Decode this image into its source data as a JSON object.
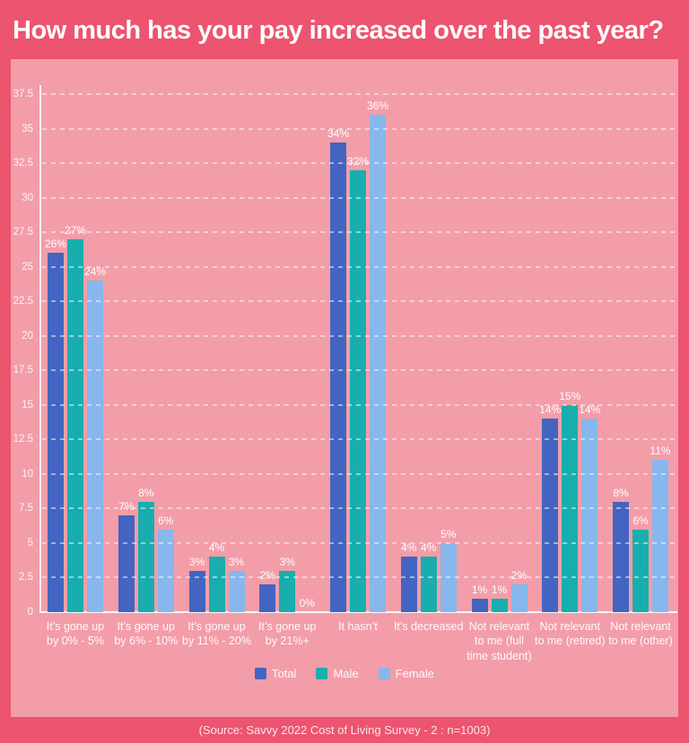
{
  "title": "How much has your pay increased over the past year?",
  "source": "(Source: Savvy 2022 Cost of Living Survey - 2 : n=1003)",
  "colors": {
    "background": "#EC5470",
    "panel": "#F39DA9",
    "axis": "#FFFFFF",
    "text": "#FFFFFF",
    "total": "#4365C1",
    "male": "#18AEAD",
    "female": "#87B7EC"
  },
  "legend": [
    "Total",
    "Male",
    "Female"
  ],
  "chart_data": {
    "type": "bar",
    "title": "How much has your pay increased over the past year?",
    "xlabel": "",
    "ylabel": "",
    "ylim": [
      0,
      37.5
    ],
    "ytick_step": 2.5,
    "yticks": [
      "0",
      "2.5",
      "5",
      "7.5",
      "10",
      "12.5",
      "15",
      "17.5",
      "20",
      "22.5",
      "25",
      "27.5",
      "30",
      "32.5",
      "35",
      "37.5"
    ],
    "grid": "dashed-horizontal",
    "legend_position": "bottom",
    "data_label_format": "{value}%",
    "categories": [
      "It’s gone up\nby 0% - 5%",
      "It’s gone up\nby 6% - 10%",
      "It’s gone up\nby 11% - 20%",
      "It’s gone up\nby 21%+",
      "It hasn’t",
      "It’s decreased",
      "Not relevant\nto me (full\ntime student)",
      "Not relevant\nto me (retired)",
      "Not relevant\nto me (other)"
    ],
    "series": [
      {
        "name": "Total",
        "color": "#4365C1",
        "values": [
          26,
          7,
          3,
          2,
          34,
          4,
          1,
          14,
          8
        ]
      },
      {
        "name": "Male",
        "color": "#18AEAD",
        "values": [
          27,
          8,
          4,
          3,
          32,
          4,
          1,
          15,
          6
        ]
      },
      {
        "name": "Female",
        "color": "#87B7EC",
        "values": [
          24,
          6,
          3,
          0,
          36,
          5,
          2,
          14,
          11
        ]
      }
    ]
  }
}
